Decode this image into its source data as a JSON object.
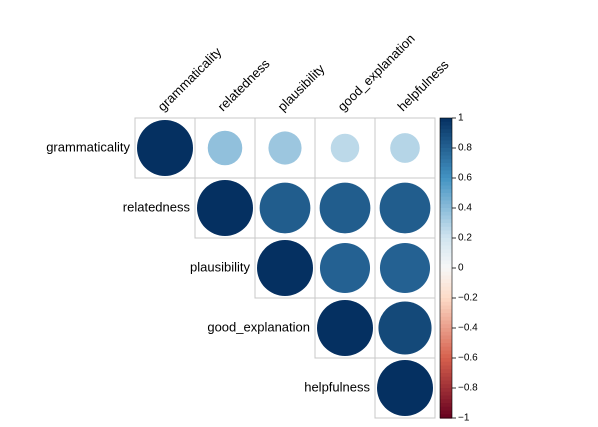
{
  "chart_data": {
    "type": "heatmap",
    "variables": [
      "grammaticality",
      "relatedness",
      "plausibility",
      "good_explanation",
      "helpfulness"
    ],
    "matrix": [
      [
        1.0,
        0.38,
        0.35,
        0.26,
        0.28
      ],
      [
        0.38,
        1.0,
        0.82,
        0.82,
        0.82
      ],
      [
        0.35,
        0.82,
        1.0,
        0.8,
        0.8
      ],
      [
        0.26,
        0.82,
        0.8,
        1.0,
        0.9
      ],
      [
        0.28,
        0.82,
        0.8,
        0.9,
        1.0
      ]
    ],
    "display": "upper-triangle circles",
    "colorbar": {
      "range": [
        -1,
        1
      ],
      "ticks": [
        "1",
        "0.8",
        "0.6",
        "0.4",
        "0.2",
        "0",
        "−0.2",
        "−0.4",
        "−0.6",
        "−0.8",
        "−1"
      ],
      "colors": {
        "negative": "#67001f",
        "neutral": "#f7f7f7",
        "positive": "#053061"
      }
    }
  }
}
